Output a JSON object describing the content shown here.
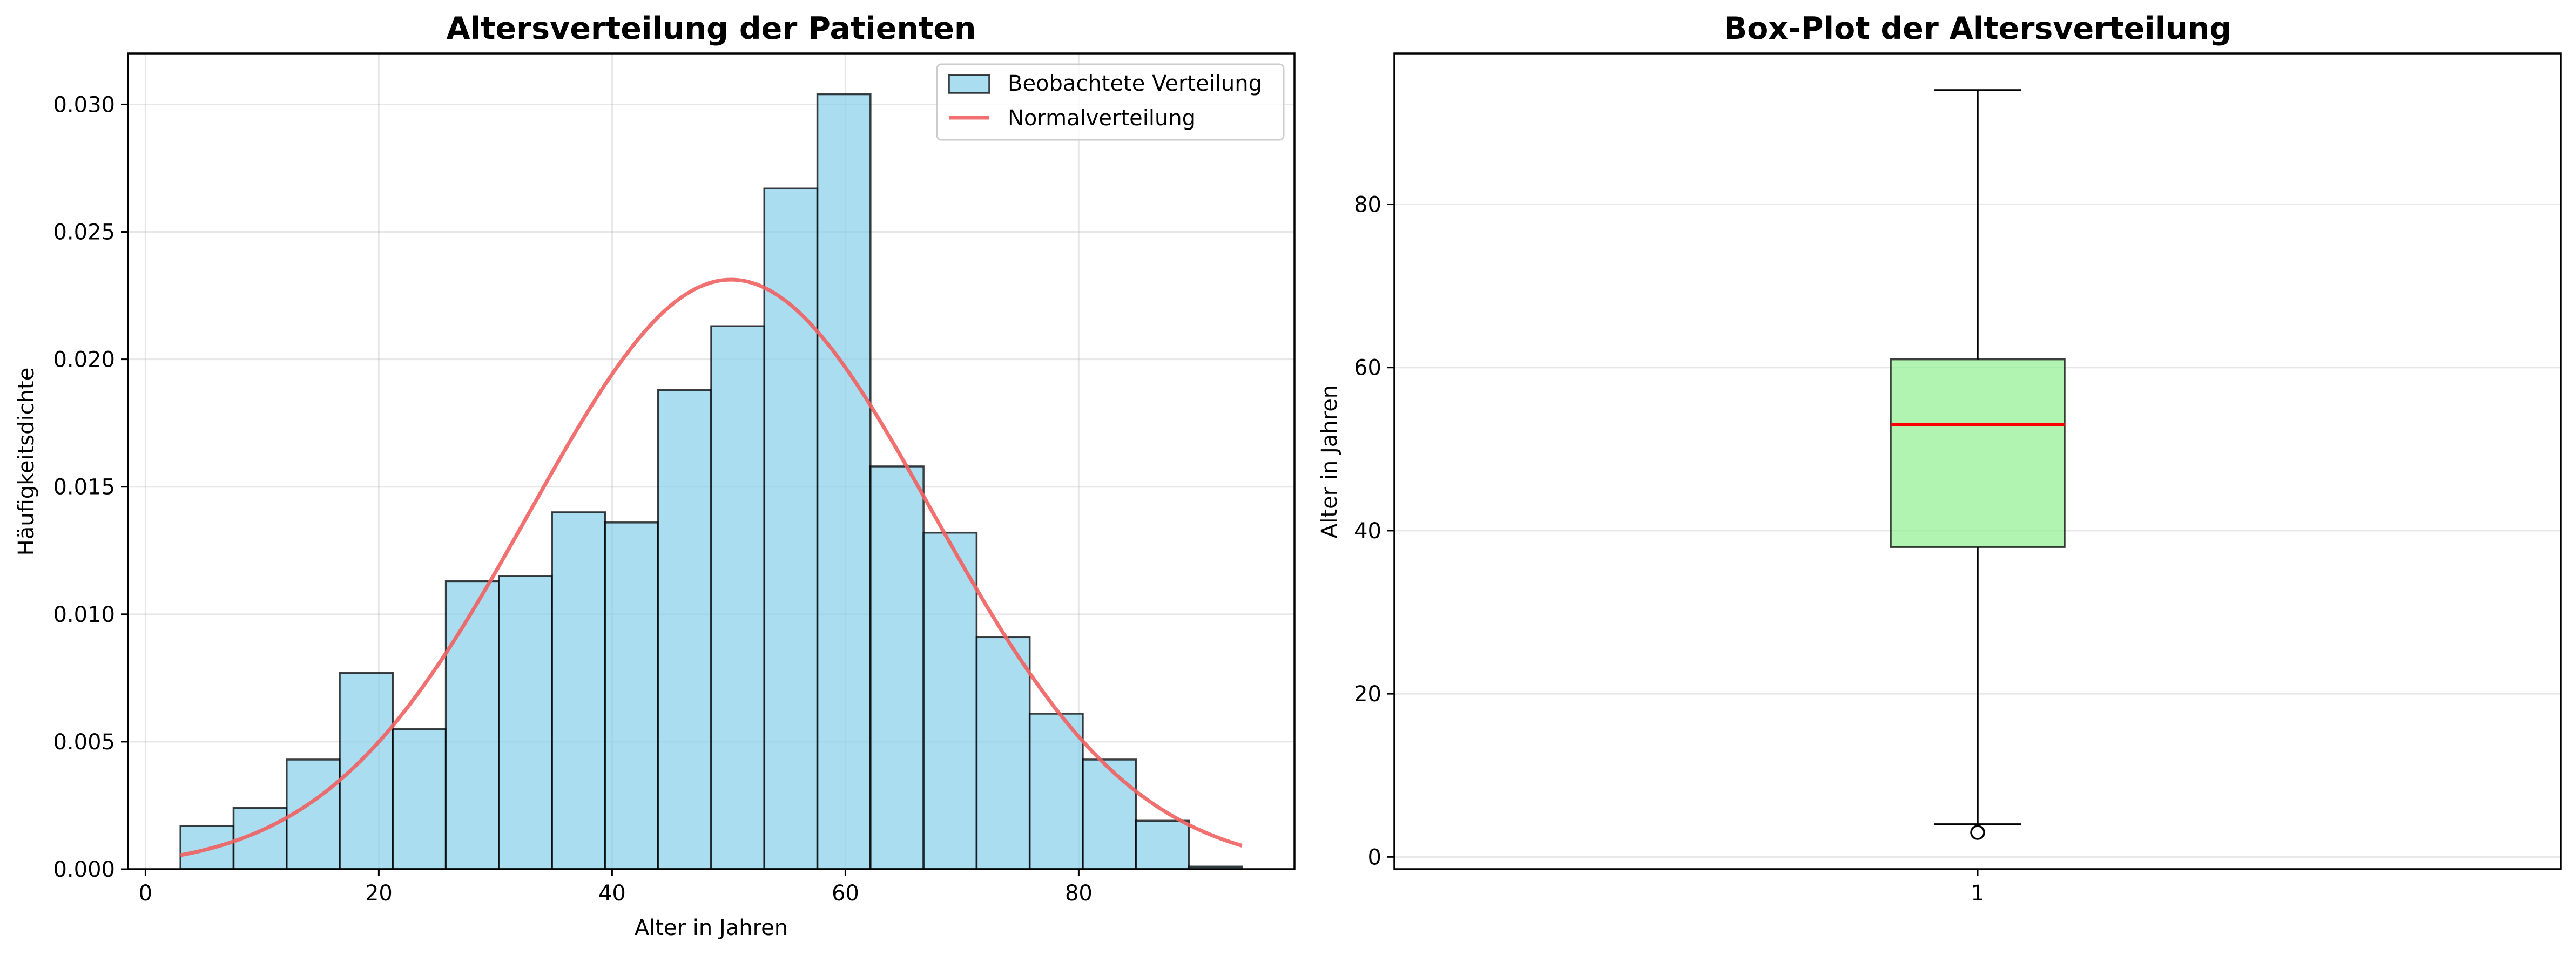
{
  "chart_data": [
    {
      "type": "bar",
      "subtype": "histogram",
      "title": "Altersverteilung der Patienten",
      "xlabel": "Alter in Jahren",
      "ylabel": "Häufigkeitsdichte",
      "xlim": [
        -1.5,
        98.5
      ],
      "ylim": [
        0,
        0.032
      ],
      "xticks": [
        0,
        20,
        40,
        60,
        80
      ],
      "xtick_labels": [
        "0",
        "20",
        "40",
        "60",
        "80"
      ],
      "yticks": [
        0,
        0.005,
        0.01,
        0.015,
        0.02,
        0.025,
        0.03
      ],
      "ytick_labels": [
        "0.000",
        "0.005",
        "0.010",
        "0.015",
        "0.020",
        "0.025",
        "0.030"
      ],
      "grid": true,
      "legend_position": "top-right",
      "bin_edges": [
        3,
        7.55,
        12.1,
        16.65,
        21.2,
        25.75,
        30.3,
        34.85,
        39.4,
        43.95,
        48.5,
        53.05,
        57.6,
        62.15,
        66.7,
        71.25,
        75.8,
        80.35,
        84.9,
        89.45,
        94
      ],
      "series": [
        {
          "name": "Beobachtete Verteilung",
          "kind": "histogram",
          "color": "#87ceeb",
          "values": [
            0.0017,
            0.0024,
            0.0043,
            0.0077,
            0.0055,
            0.0113,
            0.0115,
            0.014,
            0.0136,
            0.0188,
            0.0213,
            0.0267,
            0.0304,
            0.0158,
            0.0132,
            0.0091,
            0.0061,
            0.0043,
            0.0019,
            0.0001
          ]
        },
        {
          "name": "Normalverteilung",
          "kind": "line",
          "color": "#f06060",
          "mean": 50.2,
          "std": 17.25,
          "x_range": [
            3,
            94
          ]
        }
      ]
    },
    {
      "type": "box",
      "title": "Box-Plot der Altersverteilung",
      "xlabel": "",
      "ylabel": "Alter in Jahren",
      "ylim": [
        -1.5,
        98.5
      ],
      "yticks": [
        0,
        20,
        40,
        60,
        80
      ],
      "ytick_labels": [
        "0",
        "20",
        "40",
        "60",
        "80"
      ],
      "xtick_labels": [
        "1"
      ],
      "grid": true,
      "box": {
        "whisker_low": 4,
        "q1": 38,
        "median": 53,
        "q3": 61,
        "whisker_high": 94,
        "outliers": [
          3
        ],
        "box_color": "#90ee90",
        "median_color": "#ff0000"
      }
    }
  ]
}
